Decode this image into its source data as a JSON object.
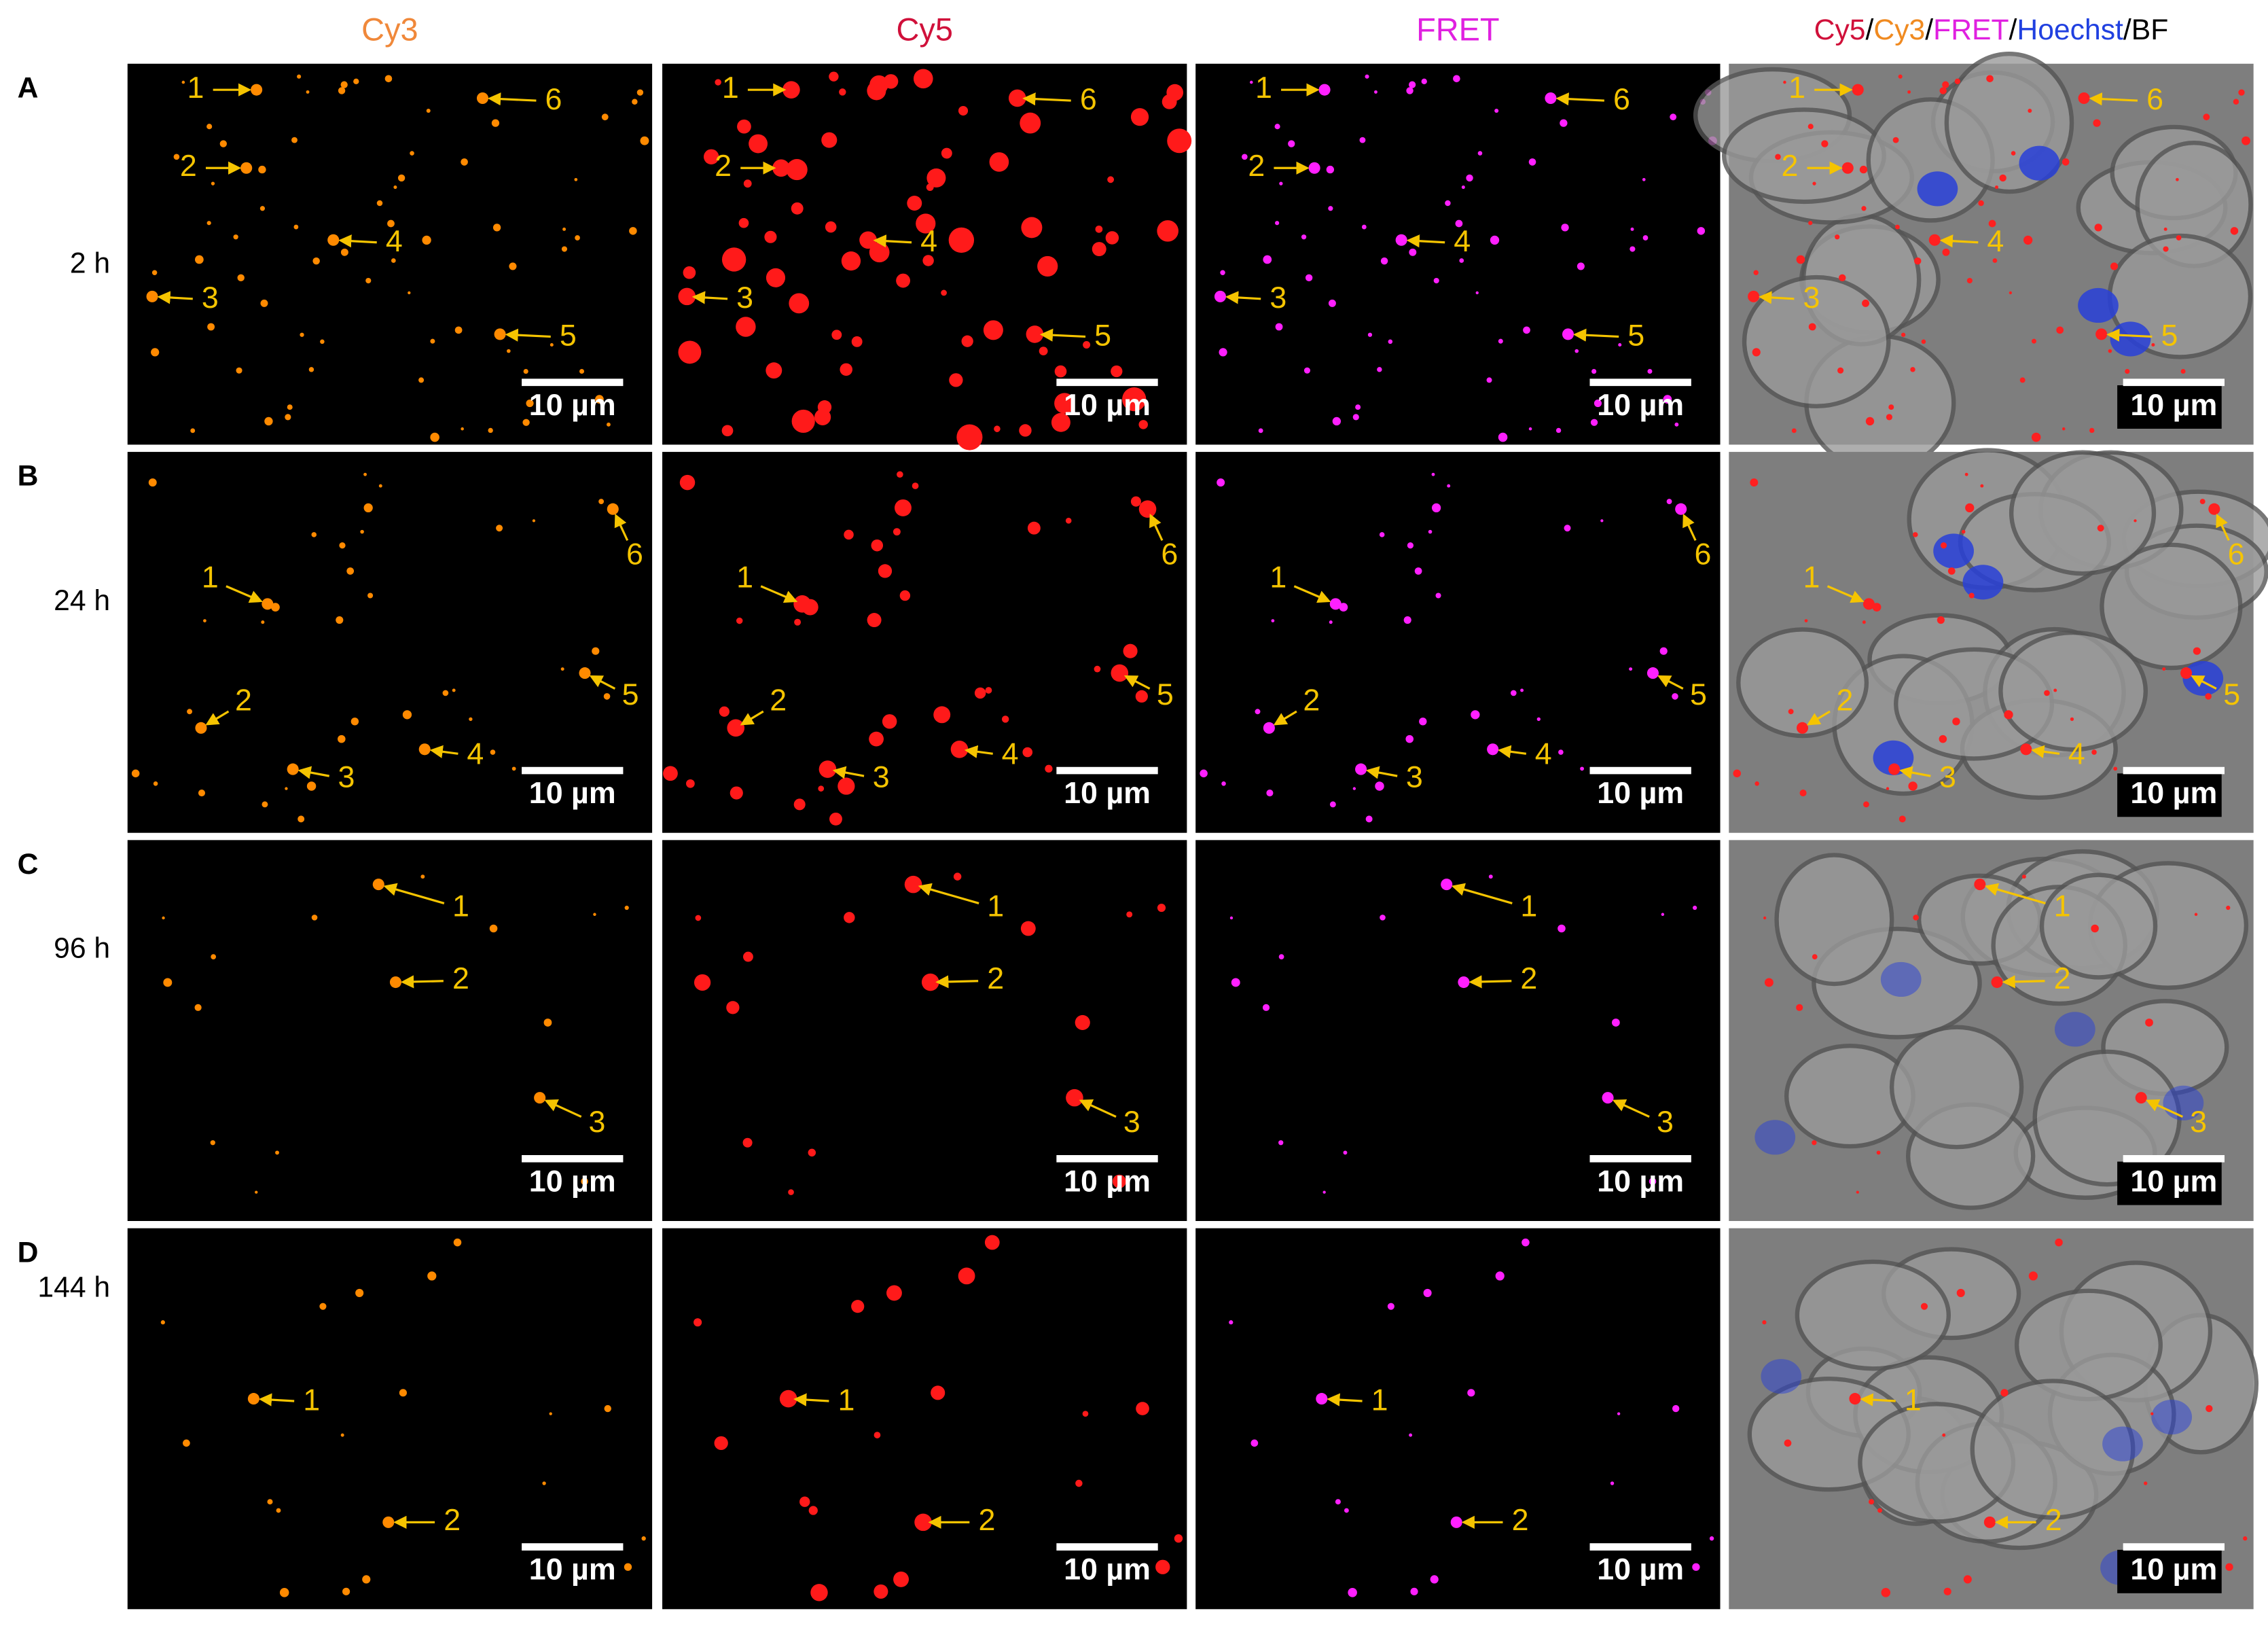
{
  "columns": [
    {
      "label": "Cy3"
    },
    {
      "label": "Cy5"
    },
    {
      "label": "FRET"
    },
    {
      "parts": [
        "Cy5",
        "/",
        "Cy3",
        "/",
        "FRET",
        "/",
        "Hoechst",
        "/",
        "BF"
      ]
    }
  ],
  "rows": [
    {
      "letter": "A",
      "time": "2 h",
      "markers": [
        "1",
        "2",
        "3",
        "4",
        "5",
        "6"
      ]
    },
    {
      "letter": "B",
      "time": "24 h",
      "markers": [
        "1",
        "2",
        "3",
        "4",
        "5",
        "6"
      ]
    },
    {
      "letter": "C",
      "time": "96 h",
      "markers": [
        "1",
        "2",
        "3"
      ]
    },
    {
      "letter": "D",
      "time": "144 h",
      "markers": [
        "1",
        "2"
      ]
    }
  ],
  "scale_bar": "10 µm"
}
